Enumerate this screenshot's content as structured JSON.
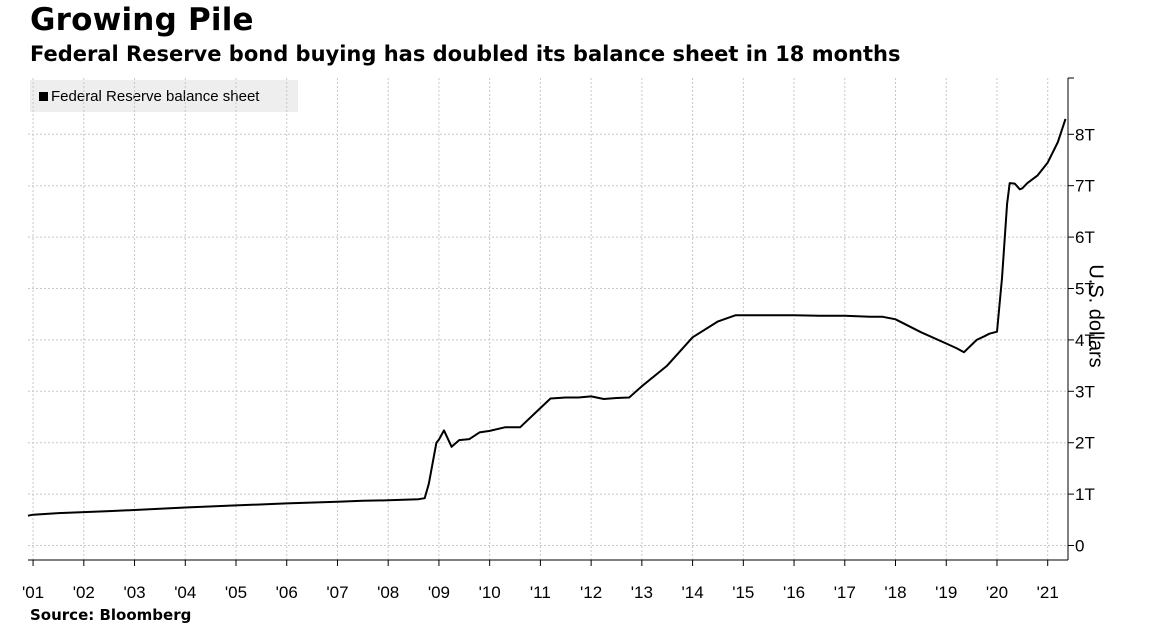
{
  "title": "Growing Pile",
  "subtitle": "Federal Reserve bond buying has doubled its balance sheet in 18 months",
  "source": "Source: Bloomberg",
  "chart_data": {
    "type": "line",
    "title": "Growing Pile",
    "subtitle": "Federal Reserve bond buying has doubled its balance sheet in 18 months",
    "xlabel": "",
    "ylabel": "U.S. dollars",
    "xlim": [
      2000.9,
      2021.4
    ],
    "ylim": [
      0,
      8.8
    ],
    "y_axis_side": "right",
    "grid": true,
    "legend_position": "top-left",
    "x_tick_values": [
      2001,
      2002,
      2003,
      2004,
      2005,
      2006,
      2007,
      2008,
      2009,
      2010,
      2011,
      2012,
      2013,
      2014,
      2015,
      2016,
      2017,
      2018,
      2019,
      2020,
      2021
    ],
    "x_tick_labels": [
      "'01",
      "'02",
      "'03",
      "'04",
      "'05",
      "'06",
      "'07",
      "'08",
      "'09",
      "'10",
      "'11",
      "'12",
      "'13",
      "'14",
      "'15",
      "'16",
      "'17",
      "'18",
      "'19",
      "'20",
      "'21"
    ],
    "y_tick_values": [
      0,
      1,
      2,
      3,
      4,
      5,
      6,
      7,
      8
    ],
    "y_tick_labels": [
      "0",
      "1T",
      "2T",
      "3T",
      "4T",
      "5T",
      "6T",
      "7T",
      "8T"
    ],
    "series": [
      {
        "name": "Federal Reserve balance sheet",
        "color": "#000000",
        "x": [
          2000.9,
          2001.0,
          2001.5,
          2002.0,
          2002.5,
          2003.0,
          2004.0,
          2005.0,
          2006.0,
          2007.0,
          2007.5,
          2008.0,
          2008.6,
          2008.72,
          2008.8,
          2008.95,
          2009.0,
          2009.1,
          2009.25,
          2009.4,
          2009.6,
          2009.8,
          2010.0,
          2010.3,
          2010.6,
          2010.9,
          2011.2,
          2011.5,
          2011.75,
          2012.0,
          2012.25,
          2012.5,
          2012.75,
          2013.0,
          2013.5,
          2014.0,
          2014.5,
          2014.85,
          2015.0,
          2015.5,
          2016.0,
          2016.5,
          2017.0,
          2017.5,
          2017.75,
          2018.0,
          2018.5,
          2019.0,
          2019.2,
          2019.35,
          2019.6,
          2019.75,
          2019.85,
          2020.0,
          2020.1,
          2020.2,
          2020.25,
          2020.35,
          2020.45,
          2020.5,
          2020.6,
          2020.8,
          2021.0,
          2021.2,
          2021.35
        ],
        "y": [
          0.58,
          0.6,
          0.63,
          0.65,
          0.67,
          0.69,
          0.74,
          0.78,
          0.82,
          0.85,
          0.87,
          0.88,
          0.9,
          0.92,
          1.2,
          2.0,
          2.06,
          2.24,
          1.92,
          2.05,
          2.07,
          2.2,
          2.23,
          2.3,
          2.3,
          2.58,
          2.86,
          2.88,
          2.88,
          2.9,
          2.85,
          2.87,
          2.88,
          3.1,
          3.5,
          4.05,
          4.36,
          4.48,
          4.48,
          4.48,
          4.48,
          4.47,
          4.47,
          4.45,
          4.45,
          4.4,
          4.15,
          3.93,
          3.84,
          3.76,
          4.0,
          4.07,
          4.12,
          4.16,
          5.2,
          6.65,
          7.05,
          7.04,
          6.93,
          6.95,
          7.05,
          7.2,
          7.45,
          7.85,
          8.3
        ]
      }
    ]
  }
}
